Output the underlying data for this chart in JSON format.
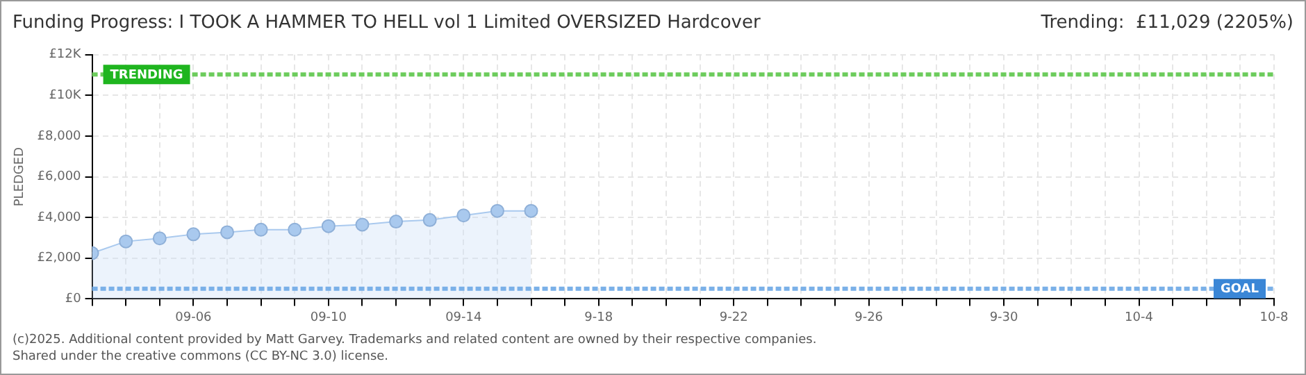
{
  "chart_data": {
    "type": "area",
    "title": "Funding Progress: I TOOK A HAMMER TO HELL vol 1 Limited OVERSIZED Hardcover",
    "subtitle": "Trending:  £11,029 (2205%)",
    "ylabel": "PLEDGED",
    "x": [
      "2025-09-03",
      "2025-09-04",
      "2025-09-05",
      "2025-09-06",
      "2025-09-07",
      "2025-09-08",
      "2025-09-09",
      "2025-09-10",
      "2025-09-11",
      "2025-09-12",
      "2025-09-13",
      "2025-09-14",
      "2025-09-15",
      "2025-09-16"
    ],
    "series": [
      {
        "color": "#a9c9ee",
        "values": [
          2250,
          2825,
          2975,
          3175,
          3275,
          3400,
          3400,
          3575,
          3650,
          3800,
          3875,
          4100,
          4325,
          4325
        ]
      }
    ],
    "ylim": [
      0,
      12000
    ],
    "yticks": [
      {
        "value": 0,
        "label": "£0"
      },
      {
        "value": 2000,
        "label": "£2,000"
      },
      {
        "value": 4000,
        "label": "£4,000"
      },
      {
        "value": 6000,
        "label": "£6,000"
      },
      {
        "value": 8000,
        "label": "£8,000"
      },
      {
        "value": 10000,
        "label": "£10K"
      },
      {
        "value": 12000,
        "label": "£12K"
      }
    ],
    "xlim": [
      "2025-09-03",
      "2025-10-08"
    ],
    "xticks": [
      {
        "value": "2025-09-03",
        "label": null
      },
      {
        "value": "2025-09-04",
        "label": null
      },
      {
        "value": "2025-09-05",
        "label": null
      },
      {
        "value": "2025-09-06",
        "label": "09-06"
      },
      {
        "value": "2025-09-07",
        "label": null
      },
      {
        "value": "2025-09-08",
        "label": null
      },
      {
        "value": "2025-09-09",
        "label": null
      },
      {
        "value": "2025-09-10",
        "label": "09-10"
      },
      {
        "value": "2025-09-11",
        "label": null
      },
      {
        "value": "2025-09-12",
        "label": null
      },
      {
        "value": "2025-09-13",
        "label": null
      },
      {
        "value": "2025-09-14",
        "label": "09-14"
      },
      {
        "value": "2025-09-15",
        "label": null
      },
      {
        "value": "2025-09-16",
        "label": null
      },
      {
        "value": "2025-09-17",
        "label": null
      },
      {
        "value": "2025-09-18",
        "label": "9-18"
      },
      {
        "value": "2025-09-19",
        "label": null
      },
      {
        "value": "2025-09-20",
        "label": null
      },
      {
        "value": "2025-09-21",
        "label": null
      },
      {
        "value": "2025-09-22",
        "label": "9-22"
      },
      {
        "value": "2025-09-23",
        "label": null
      },
      {
        "value": "2025-09-24",
        "label": null
      },
      {
        "value": "2025-09-25",
        "label": null
      },
      {
        "value": "2025-09-26",
        "label": "9-26"
      },
      {
        "value": "2025-09-27",
        "label": null
      },
      {
        "value": "2025-09-28",
        "label": null
      },
      {
        "value": "2025-09-29",
        "label": null
      },
      {
        "value": "2025-09-30",
        "label": "9-30"
      },
      {
        "value": "2025-10-01",
        "label": null
      },
      {
        "value": "2025-10-02",
        "label": null
      },
      {
        "value": "2025-10-03",
        "label": null
      },
      {
        "value": "2025-10-04",
        "label": "10-4"
      },
      {
        "value": "2025-10-05",
        "label": null
      },
      {
        "value": "2025-10-06",
        "label": null
      },
      {
        "value": "2025-10-07",
        "label": null
      },
      {
        "value": "2025-10-08",
        "label": "10-8"
      }
    ],
    "ref_lines": [
      {
        "axis": "y",
        "value": 11029,
        "label": "TRENDING",
        "color": "#6ccc5c",
        "line_style": "dashed"
      },
      {
        "axis": "y",
        "value": 500,
        "label": "GOAL",
        "color": "#7ab0e8",
        "line_style": "dashed"
      }
    ],
    "grid": true,
    "legend": false,
    "marker": "circle",
    "line_style": "solid",
    "annotations": [
      "(c)2025. Additional content provided by Matt Garvey. Trademarks and related content are owned by their respective companies.",
      "Shared under the creative commons (CC BY-NC 3.0) license."
    ]
  }
}
